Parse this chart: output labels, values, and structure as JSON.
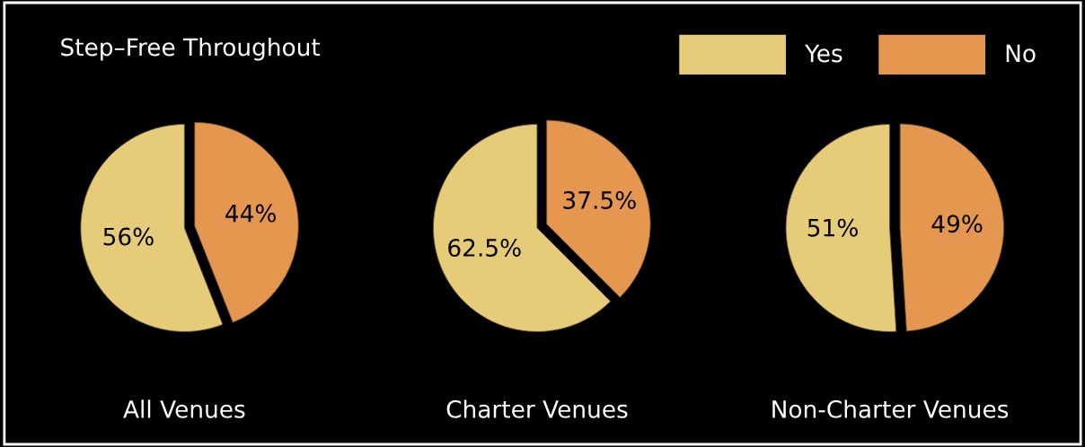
{
  "chart_data": [
    {
      "type": "pie",
      "title": "Step–Free Throughout",
      "xlabel": "All Venues",
      "categories": [
        "Yes",
        "No"
      ],
      "values": [
        56,
        44
      ],
      "value_labels": [
        "56%",
        "44%"
      ],
      "colors": [
        "#e6cb78",
        "#e5974f"
      ],
      "legend": "top right"
    },
    {
      "type": "pie",
      "xlabel": "Charter Venues",
      "values": [
        62.5,
        37.5
      ],
      "value_labels": [
        "62.5%",
        "37.5%"
      ],
      "colors": [
        "#e6cb78",
        "#e5974f"
      ]
    },
    {
      "type": "pie",
      "xlabel": "Non-Charter Venues",
      "values": [
        51,
        49
      ],
      "value_labels": [
        "51%",
        "49%"
      ],
      "colors": [
        "#e6cb78",
        "#e5974f"
      ]
    }
  ]
}
